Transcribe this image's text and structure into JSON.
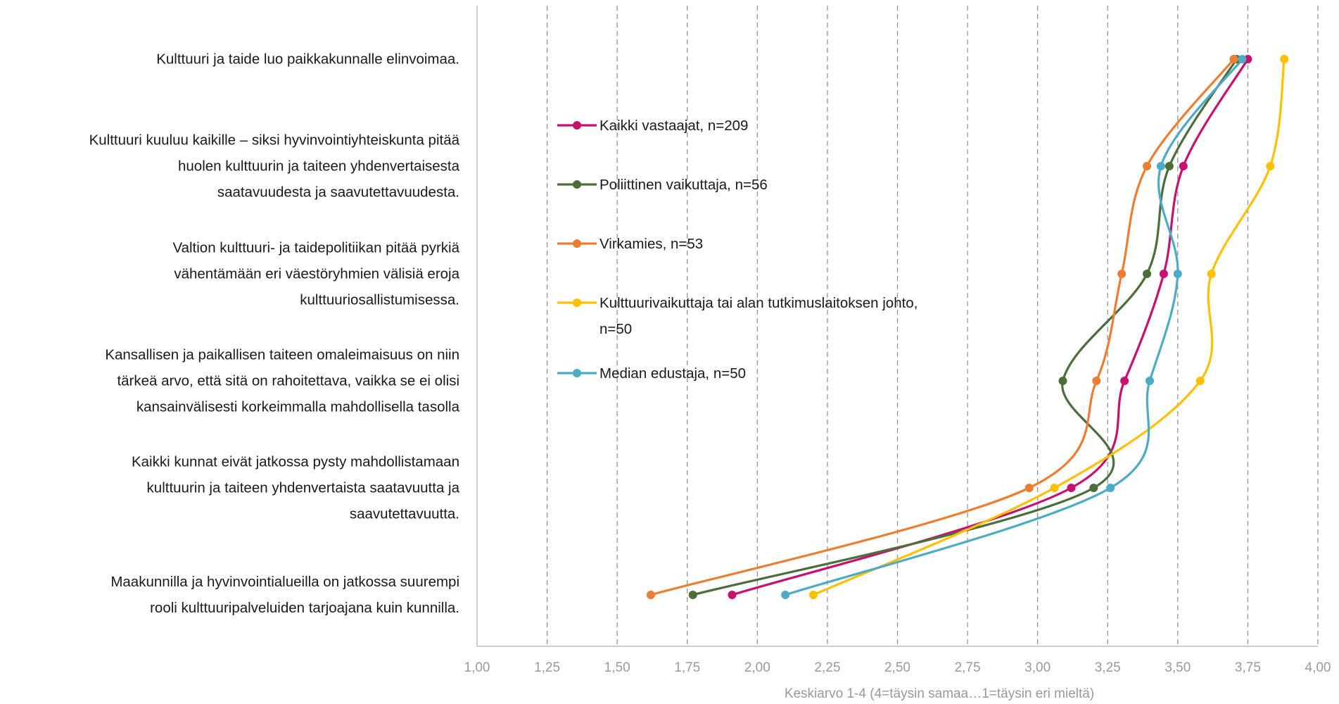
{
  "chart_data": {
    "type": "line",
    "orientation": "horizontal",
    "categories": [
      "Kulttuuri ja taide luo paikkakunnalle elinvoimaa.",
      "Kulttuuri kuuluu kaikille – siksi hyvinvointiyhteiskunta pitää huolen kulttuurin ja taiteen yhdenvertaisesta saatavuudesta ja saavutettavuudesta.",
      "Valtion kulttuuri- ja taidepolitiikan pitää pyrkiä vähentämään eri väestöryhmien välisiä eroja kulttuuriosallistumisessa.",
      "Kansallisen ja paikallisen taiteen omaleimaisuus on niin tärkeä arvo, että sitä on rahoitettava, vaikka se ei olisi kansainvälisesti korkeimmalla mahdollisella tasolla",
      "Kaikki kunnat eivät jatkossa pysty mahdollistamaan kulttuurin ja taiteen yhdenvertaista saatavuutta ja saavutettavuutta.",
      "Maakunnilla ja hyvinvointialueilla on jatkossa suurempi rooli kulttuuripalveluiden tarjoajana kuin kunnilla."
    ],
    "category_lines": [
      [
        "Kulttuuri ja taide luo paikkakunnalle elinvoimaa."
      ],
      [
        "Kulttuuri kuuluu kaikille – siksi hyvinvointiyhteiskunta pitää",
        "huolen kulttuurin ja taiteen yhdenvertaisesta",
        "saatavuudesta ja saavutettavuudesta."
      ],
      [
        "Valtion kulttuuri- ja taidepolitiikan pitää pyrkiä",
        "vähentämään eri väestöryhmien välisiä eroja",
        "kulttuuriosallistumisessa."
      ],
      [
        "Kansallisen ja paikallisen taiteen omaleimaisuus on niin",
        "tärkeä arvo, että sitä on rahoitettava, vaikka se ei olisi",
        "kansainvälisesti korkeimmalla mahdollisella tasolla"
      ],
      [
        "Kaikki kunnat eivät jatkossa pysty mahdollistamaan",
        "kulttuurin ja taiteen yhdenvertaista saatavuutta ja",
        "saavutettavuutta."
      ],
      [
        "Maakunnilla ja hyvinvointialueilla on jatkossa suurempi",
        "rooli kulttuuripalveluiden tarjoajana kuin kunnilla."
      ]
    ],
    "series": [
      {
        "name": "Kaikki vastaajat, n=209",
        "color": "#C8106E",
        "values": [
          3.75,
          3.52,
          3.45,
          3.31,
          3.12,
          1.91
        ]
      },
      {
        "name": "Poliittinen vaikuttaja, n=56",
        "color": "#4B6E3A",
        "values": [
          3.71,
          3.47,
          3.39,
          3.09,
          3.2,
          1.77
        ]
      },
      {
        "name": "Virkamies, n=53",
        "color": "#ED7D31",
        "values": [
          3.7,
          3.39,
          3.3,
          3.21,
          2.97,
          1.62
        ]
      },
      {
        "name": "Kulttuurivaikuttaja tai alan tutkimuslaitoksen johto, n=50",
        "color": "#FFC000",
        "values": [
          3.88,
          3.83,
          3.62,
          3.58,
          3.06,
          2.2
        ]
      },
      {
        "name": "Median edustaja, n=50",
        "color": "#4BACC6",
        "values": [
          3.73,
          3.44,
          3.5,
          3.4,
          3.26,
          2.1
        ]
      }
    ],
    "legend_lines": [
      [
        "Kaikki vastaajat, n=209"
      ],
      [
        "Poliittinen vaikuttaja, n=56"
      ],
      [
        "Virkamies, n=53"
      ],
      [
        "Kulttuurivaikuttaja tai alan tutkimuslaitoksen johto,",
        "n=50"
      ],
      [
        "Median edustaja, n=50"
      ]
    ],
    "xlim": [
      1.0,
      4.0
    ],
    "xticks": [
      "1,00",
      "1,25",
      "1,50",
      "1,75",
      "2,00",
      "2,25",
      "2,50",
      "2,75",
      "3,00",
      "3,25",
      "3,50",
      "3,75",
      "4,00"
    ],
    "xlabel": "Keskiarvo 1-4 (4=täysin samaa…1=täysin eri mieltä)",
    "grid": "vertical dashed",
    "legend_position": "inside-left"
  }
}
